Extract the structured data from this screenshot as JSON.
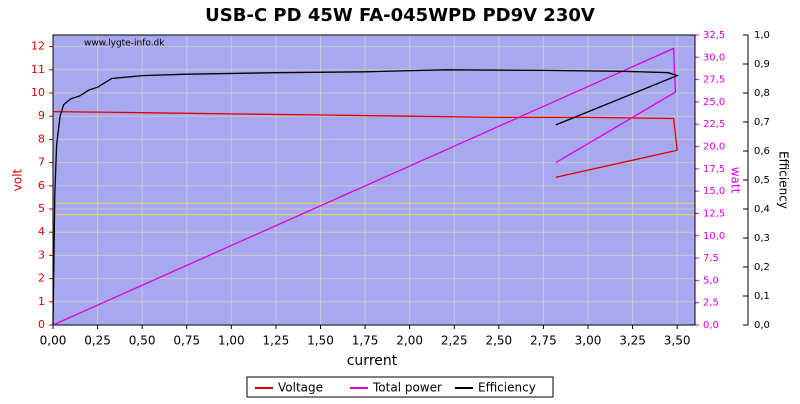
{
  "chart_data": {
    "type": "line",
    "title": "USB-C PD 45W FA-045WPD PD9V 230V",
    "annotation": "www.lygte-info.dk",
    "xlabel": "current",
    "ylabel": "volt",
    "y2label": "watt",
    "y3label": "Efficiency",
    "xlim": [
      0,
      3.6
    ],
    "ylim": [
      0,
      12.5
    ],
    "y2lim": [
      0,
      32.5
    ],
    "y3lim": [
      0,
      1.0
    ],
    "xticks": [
      {
        "value": 0,
        "label": "0,00"
      },
      {
        "value": 0.25,
        "label": "0,25"
      },
      {
        "value": 0.5,
        "label": "0,50"
      },
      {
        "value": 0.75,
        "label": "0,75"
      },
      {
        "value": 1,
        "label": "1,00"
      },
      {
        "value": 1.25,
        "label": "1,25"
      },
      {
        "value": 1.5,
        "label": "1,50"
      },
      {
        "value": 1.75,
        "label": "1,75"
      },
      {
        "value": 2,
        "label": "2,00"
      },
      {
        "value": 2.25,
        "label": "2,25"
      },
      {
        "value": 2.5,
        "label": "2,50"
      },
      {
        "value": 2.75,
        "label": "2,75"
      },
      {
        "value": 3,
        "label": "3,00"
      },
      {
        "value": 3.25,
        "label": "3,25"
      },
      {
        "value": 3.5,
        "label": "3,50"
      }
    ],
    "yticks": [
      0,
      1,
      2,
      3,
      4,
      5,
      6,
      7,
      8,
      9,
      10,
      11,
      12
    ],
    "y2ticks": [
      {
        "value": 0,
        "label": "0,0"
      },
      {
        "value": 2.5,
        "label": "2,5"
      },
      {
        "value": 5,
        "label": "5,0"
      },
      {
        "value": 7.5,
        "label": "7,5"
      },
      {
        "value": 10,
        "label": "10,0"
      },
      {
        "value": 12.5,
        "label": "12,5"
      },
      {
        "value": 15,
        "label": "15,0"
      },
      {
        "value": 17.5,
        "label": "17,5"
      },
      {
        "value": 20,
        "label": "20,0"
      },
      {
        "value": 22.5,
        "label": "22,5"
      },
      {
        "value": 25,
        "label": "25,0"
      },
      {
        "value": 27.5,
        "label": "27,5"
      },
      {
        "value": 30,
        "label": "30,0"
      },
      {
        "value": 32.5,
        "label": "32,5"
      }
    ],
    "y3ticks": [
      {
        "value": 0,
        "label": "0,0"
      },
      {
        "value": 0.1,
        "label": "0,1"
      },
      {
        "value": 0.2,
        "label": "0,2"
      },
      {
        "value": 0.3,
        "label": "0,3"
      },
      {
        "value": 0.4,
        "label": "0,4"
      },
      {
        "value": 0.5,
        "label": "0,5"
      },
      {
        "value": 0.6,
        "label": "0,6"
      },
      {
        "value": 0.7,
        "label": "0,7"
      },
      {
        "value": 0.8,
        "label": "0,8"
      },
      {
        "value": 0.9,
        "label": "0,9"
      },
      {
        "value": 1,
        "label": "1,0"
      }
    ],
    "hlines": [
      4.75,
      5.25
    ],
    "hline_color": "#e0e040",
    "plot_bg": "#a8a8f0",
    "grid": true,
    "series": [
      {
        "name": "Voltage",
        "color": "#e00000",
        "axis": "y",
        "x": [
          0,
          0.5,
          1.0,
          1.5,
          2.0,
          2.5,
          3.0,
          3.48,
          3.5,
          2.82
        ],
        "values": [
          9.2,
          9.15,
          9.1,
          9.05,
          9.0,
          8.95,
          8.95,
          8.9,
          7.53,
          6.37
        ]
      },
      {
        "name": "Total power",
        "color": "#e000e0",
        "axis": "y2",
        "x": [
          0,
          3.48,
          3.49,
          2.82
        ],
        "values": [
          0,
          31.0,
          26.1,
          18.2
        ]
      },
      {
        "name": "Efficiency",
        "color": "#000000",
        "axis": "y3",
        "x": [
          0.0,
          0.01,
          0.02,
          0.04,
          0.06,
          0.1,
          0.15,
          0.2,
          0.25,
          0.33,
          0.5,
          0.75,
          1.25,
          1.75,
          2.2,
          2.75,
          3.2,
          3.45,
          3.5,
          2.82
        ],
        "values": [
          0,
          0.45,
          0.62,
          0.72,
          0.76,
          0.78,
          0.79,
          0.81,
          0.82,
          0.85,
          0.86,
          0.865,
          0.87,
          0.873,
          0.88,
          0.878,
          0.875,
          0.87,
          0.86,
          0.69
        ]
      }
    ]
  }
}
